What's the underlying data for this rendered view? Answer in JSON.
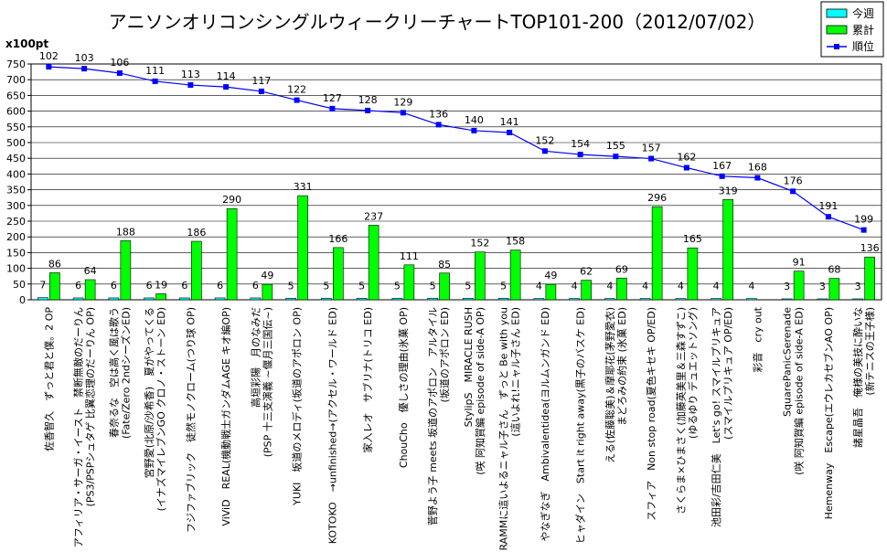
{
  "chart_data": {
    "type": "bar",
    "title": "アニソンオリコンシングルウィークリーチャートTOP101-200（2012/07/02）",
    "y_unit_label": "x100pt",
    "ylim": [
      0,
      750
    ],
    "yticks": [
      0,
      50,
      100,
      150,
      200,
      250,
      300,
      350,
      400,
      450,
      500,
      550,
      600,
      650,
      700,
      750
    ],
    "legend_position": "top-right",
    "categories": [
      [
        "佐香智久　ずっと君と僕。2 OP"
      ],
      [
        "アフィリア・サーガ・イースト　禁断無敵のだーりん",
        "(PS3/PSPシュタゲ 比翼恋理のだーりん OP)"
      ],
      [
        "春奈るな　空は高く風は歌う",
        "(Fate/Zero 2ndシーズンED)"
      ],
      [
        "宮野愛(北原/沙希香)　夏がやってくる",
        "(イナズマイレブンGO クロノ・ストーン ED)"
      ],
      [
        "フジファブリック　徒然モノクローム(つり球 OP)"
      ],
      [
        "ViViD　REAL(機動戦士ガンダムAGE キオ編OP)"
      ],
      [
        "高垣彩陽　月のなみだ",
        "(PSP 十三支演義 ~偃月三国伝~)"
      ],
      [
        "YUKI　坂道のメロディ(坂道のアポロン OP)"
      ],
      [
        "KOTOKO　→unfinished→(アクセル・ワールド ED)"
      ],
      [
        "家入レオ　サブリナ(トリコ ED)"
      ],
      [
        "ChouCho　優しさの理由(氷菓 OP)"
      ],
      [
        "菅野よう子 meets 坂道のアポロン　アルタイル",
        "(坂道のアポロン ED)"
      ],
      [
        "StylipS　MIRACLE RUSH",
        "(咲 阿知賀編 episode of side-A OP)"
      ],
      [
        "RAMMに這いよるニャル子さん　ずっと Be with you",
        "(這いよれ!ニャル子さん ED)"
      ],
      [
        "やなぎなぎ　Ambivalentidea(ヨルムンガンド ED)"
      ],
      [
        "ヒャダイン　Start it right away(黒子のバスケ ED)"
      ],
      [
        "える(佐藤聡美)＆摩耶花(茅野愛衣)",
        "まどろみの約束 (氷菓 ED)"
      ],
      [
        "スフィア　Non stop road(夏色キセキ OP/ED)"
      ],
      [
        "さくらま×ひまさく(加藤英美里＆三森すずこ)",
        "(ゆるゆり デュエットソング)"
      ],
      [
        "池田彩/吉田仁美　Let's go! スマイルプリキュア",
        "(スマイルプリキュア OP/ED)"
      ],
      [
        "彩音　cry out"
      ],
      [
        "SquarePanicSerenade",
        "(咲 阿知賀編 episode of side-A ED)"
      ],
      [
        "Hemenway　Escape(エウレカセブンAO OP)"
      ],
      [
        "諸星晶吾　俺様の美技に酔いな",
        "(新テニスの王子様)"
      ]
    ],
    "series": [
      {
        "name": "今週",
        "type": "bar",
        "color": "#00ffff",
        "values": [
          7,
          6,
          6,
          6,
          6,
          6,
          6,
          5,
          5,
          5,
          5,
          5,
          5,
          5,
          4,
          4,
          4,
          4,
          4,
          4,
          4,
          3,
          3,
          3
        ],
        "labels": [
          "7",
          "6",
          "6",
          "6",
          "6",
          "6",
          "6",
          "5",
          "5",
          "5",
          "5",
          "5",
          "5",
          "5",
          "4",
          "4",
          "4",
          "4",
          "4",
          "4",
          "4",
          "3",
          "3",
          "3"
        ]
      },
      {
        "name": "累計",
        "type": "bar",
        "color": "#00ff00",
        "values": [
          86,
          64,
          188,
          19,
          186,
          290,
          49,
          331,
          166,
          237,
          111,
          85,
          152,
          158,
          49,
          62,
          69,
          296,
          165,
          319,
          0,
          91,
          68,
          136
        ],
        "labels": [
          "86",
          "64",
          "188",
          "19",
          "186",
          "290",
          "49",
          "331",
          "166",
          "237",
          "111",
          "85",
          "152",
          "158",
          "49",
          "62",
          "69",
          "296",
          "165",
          "319",
          "",
          "91",
          "68",
          "136"
        ]
      },
      {
        "name": "順位",
        "type": "line",
        "color": "#0000ff",
        "values": [
          741,
          735,
          721,
          695,
          683,
          677,
          663,
          635,
          608,
          602,
          595,
          557,
          538,
          532,
          473,
          462,
          456,
          449,
          420,
          393,
          388,
          345,
          264,
          222
        ],
        "labels": [
          "102",
          "103",
          "106",
          "111",
          "113",
          "114",
          "117",
          "122",
          "127",
          "128",
          "129",
          "136",
          "140",
          "141",
          "152",
          "154",
          "155",
          "157",
          "162",
          "167",
          "168",
          "176",
          "191",
          "199"
        ]
      }
    ]
  }
}
